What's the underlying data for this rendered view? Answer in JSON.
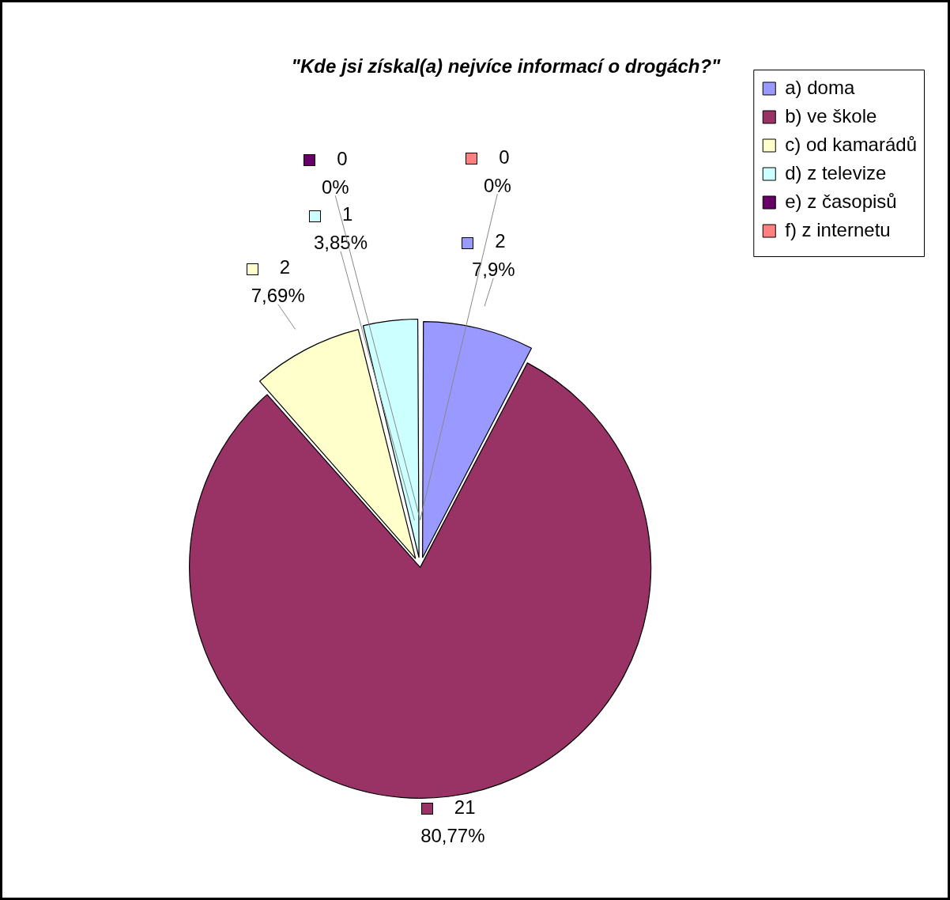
{
  "chart_data": {
    "type": "pie",
    "title": "\"Kde jsi získal(a) nejvíce informací o drogách?\"",
    "categories": [
      "a) doma",
      "b) ve škole",
      "c) od kamarádů",
      "d) z televize",
      "e) z časopisů",
      "f) z internetu"
    ],
    "values": [
      2,
      21,
      2,
      1,
      0,
      0
    ],
    "colors": [
      "#9999ff",
      "#993366",
      "#ffffcc",
      "#ccffff",
      "#660066",
      "#ff8080"
    ],
    "value_labels": [
      "2\n7,9%",
      "21\n80,77%",
      "2\n7,69%",
      "1\n3,85%",
      "0\n0%",
      "0\n0%"
    ],
    "legend": "right"
  }
}
